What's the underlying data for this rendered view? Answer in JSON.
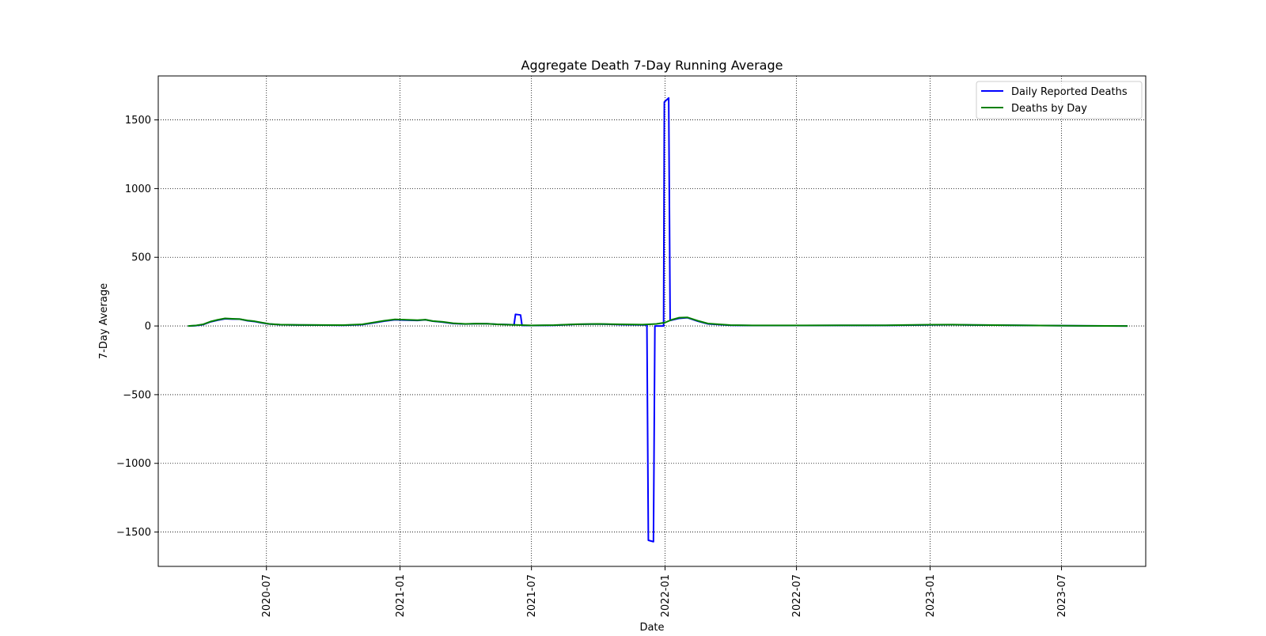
{
  "chart_data": {
    "type": "line",
    "title": "Aggregate Death 7-Day Running Average",
    "xlabel": "Date",
    "ylabel": "7-Day Average",
    "xlim": [
      "2020-02-03",
      "2023-10-25"
    ],
    "ylim": [
      -1750,
      1820
    ],
    "x_ticks": [
      "2020-07",
      "2021-01",
      "2021-07",
      "2022-01",
      "2022-07",
      "2023-01",
      "2023-07"
    ],
    "x_tick_dates": [
      "2020-07-01",
      "2021-01-01",
      "2021-07-01",
      "2022-01-01",
      "2022-07-01",
      "2023-01-01",
      "2023-07-01"
    ],
    "y_ticks": [
      -1500,
      -1000,
      -500,
      0,
      500,
      1000,
      1500
    ],
    "y_tick_labels": [
      "−1500",
      "−1000",
      "−500",
      "0",
      "500",
      "1000",
      "1500"
    ],
    "grid": true,
    "legend_position": "top-right",
    "series": [
      {
        "name": "Daily Reported Deaths",
        "color": "#0000ff",
        "points": [
          [
            "2020-03-15",
            0
          ],
          [
            "2020-03-25",
            2
          ],
          [
            "2020-04-05",
            10
          ],
          [
            "2020-04-15",
            30
          ],
          [
            "2020-04-25",
            42
          ],
          [
            "2020-05-05",
            52
          ],
          [
            "2020-05-15",
            50
          ],
          [
            "2020-05-25",
            50
          ],
          [
            "2020-06-05",
            38
          ],
          [
            "2020-06-15",
            32
          ],
          [
            "2020-06-25",
            22
          ],
          [
            "2020-07-05",
            14
          ],
          [
            "2020-07-20",
            9
          ],
          [
            "2020-08-15",
            7
          ],
          [
            "2020-09-15",
            6
          ],
          [
            "2020-10-15",
            5
          ],
          [
            "2020-11-10",
            10
          ],
          [
            "2020-11-25",
            22
          ],
          [
            "2020-12-10",
            35
          ],
          [
            "2020-12-25",
            45
          ],
          [
            "2021-01-10",
            42
          ],
          [
            "2021-01-25",
            40
          ],
          [
            "2021-02-05",
            45
          ],
          [
            "2021-02-15",
            35
          ],
          [
            "2021-03-01",
            28
          ],
          [
            "2021-03-15",
            18
          ],
          [
            "2021-04-01",
            14
          ],
          [
            "2021-04-15",
            16
          ],
          [
            "2021-05-01",
            16
          ],
          [
            "2021-05-15",
            12
          ],
          [
            "2021-06-01",
            10
          ],
          [
            "2021-06-07",
            8
          ],
          [
            "2021-06-09",
            85
          ],
          [
            "2021-06-16",
            80
          ],
          [
            "2021-06-18",
            4
          ],
          [
            "2021-07-01",
            3
          ],
          [
            "2021-08-01",
            5
          ],
          [
            "2021-09-01",
            12
          ],
          [
            "2021-10-01",
            14
          ],
          [
            "2021-11-01",
            10
          ],
          [
            "2021-12-01",
            8
          ],
          [
            "2021-12-07",
            8
          ],
          [
            "2021-12-09",
            -1560
          ],
          [
            "2021-12-16",
            -1570
          ],
          [
            "2021-12-18",
            0
          ],
          [
            "2021-12-30",
            0
          ],
          [
            "2021-12-31",
            1630
          ],
          [
            "2022-01-06",
            1660
          ],
          [
            "2022-01-08",
            40
          ],
          [
            "2022-01-20",
            55
          ],
          [
            "2022-02-01",
            60
          ],
          [
            "2022-02-15",
            35
          ],
          [
            "2022-03-01",
            15
          ],
          [
            "2022-04-01",
            5
          ],
          [
            "2022-05-01",
            3
          ],
          [
            "2022-07-01",
            3
          ],
          [
            "2022-09-01",
            4
          ],
          [
            "2022-11-01",
            4
          ],
          [
            "2023-01-01",
            8
          ],
          [
            "2023-02-01",
            9
          ],
          [
            "2023-03-01",
            7
          ],
          [
            "2023-04-01",
            6
          ],
          [
            "2023-06-01",
            3
          ],
          [
            "2023-08-01",
            1
          ],
          [
            "2023-09-30",
            0
          ]
        ]
      },
      {
        "name": "Deaths by Day",
        "color": "#008000",
        "points": [
          [
            "2020-03-15",
            0
          ],
          [
            "2020-03-25",
            3
          ],
          [
            "2020-04-05",
            12
          ],
          [
            "2020-04-15",
            32
          ],
          [
            "2020-04-25",
            45
          ],
          [
            "2020-05-05",
            55
          ],
          [
            "2020-05-15",
            52
          ],
          [
            "2020-05-25",
            50
          ],
          [
            "2020-06-05",
            40
          ],
          [
            "2020-06-15",
            34
          ],
          [
            "2020-06-25",
            24
          ],
          [
            "2020-07-05",
            15
          ],
          [
            "2020-07-20",
            10
          ],
          [
            "2020-08-15",
            8
          ],
          [
            "2020-09-15",
            7
          ],
          [
            "2020-10-15",
            6
          ],
          [
            "2020-11-10",
            12
          ],
          [
            "2020-11-25",
            25
          ],
          [
            "2020-12-10",
            38
          ],
          [
            "2020-12-25",
            48
          ],
          [
            "2021-01-10",
            45
          ],
          [
            "2021-01-25",
            42
          ],
          [
            "2021-02-05",
            46
          ],
          [
            "2021-02-15",
            36
          ],
          [
            "2021-03-01",
            30
          ],
          [
            "2021-03-15",
            20
          ],
          [
            "2021-04-01",
            15
          ],
          [
            "2021-04-15",
            17
          ],
          [
            "2021-05-01",
            16
          ],
          [
            "2021-05-15",
            12
          ],
          [
            "2021-06-01",
            9
          ],
          [
            "2021-07-01",
            4
          ],
          [
            "2021-08-01",
            6
          ],
          [
            "2021-09-01",
            13
          ],
          [
            "2021-10-01",
            15
          ],
          [
            "2021-11-01",
            12
          ],
          [
            "2021-12-01",
            10
          ],
          [
            "2021-12-20",
            15
          ],
          [
            "2022-01-01",
            25
          ],
          [
            "2022-01-10",
            45
          ],
          [
            "2022-01-20",
            60
          ],
          [
            "2022-02-01",
            62
          ],
          [
            "2022-02-15",
            38
          ],
          [
            "2022-03-01",
            18
          ],
          [
            "2022-04-01",
            6
          ],
          [
            "2022-05-01",
            4
          ],
          [
            "2022-07-01",
            4
          ],
          [
            "2022-09-01",
            5
          ],
          [
            "2022-11-01",
            5
          ],
          [
            "2023-01-01",
            9
          ],
          [
            "2023-02-01",
            10
          ],
          [
            "2023-03-01",
            8
          ],
          [
            "2023-04-01",
            6
          ],
          [
            "2023-06-01",
            3
          ],
          [
            "2023-08-01",
            1
          ],
          [
            "2023-09-30",
            0
          ]
        ]
      }
    ]
  }
}
